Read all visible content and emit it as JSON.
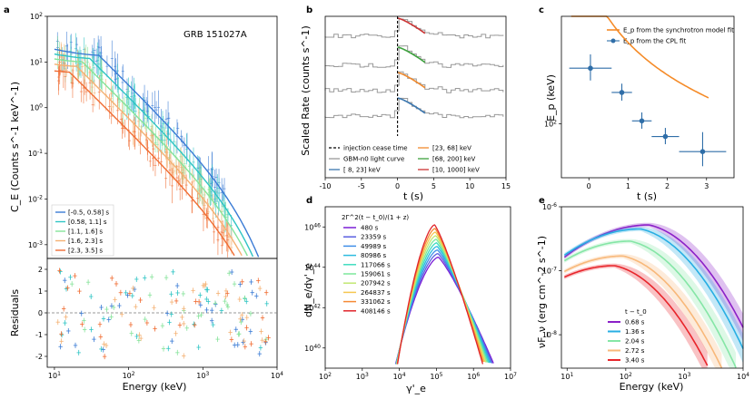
{
  "chart_data": [
    {
      "panel": "a",
      "type": "line",
      "title": "GRB 151027A",
      "xlabel": "Energy (keV)",
      "ylabel": "C_E (Counts s^-1 keV^-1)",
      "xscale": "log",
      "yscale": "log",
      "xlim": [
        8,
        10000
      ],
      "ylim": [
        0.0005,
        100
      ],
      "xticks": [
        "10^1",
        "10^2",
        "10^3",
        "10^4"
      ],
      "yticks": [
        "10^-3",
        "10^-2",
        "10^-1",
        "10^0",
        "10^1",
        "10^2"
      ],
      "legend_position": "bottom-left",
      "series": [
        {
          "name": "[-0.5, 0.58] s",
          "color": "#3a7bd5",
          "peak_keV": 40,
          "norm": 14
        },
        {
          "name": "[0.58, 1.1] s",
          "color": "#2ec4c4",
          "peak_keV": 30,
          "norm": 12
        },
        {
          "name": "[1.1, 1.6] s",
          "color": "#86e39a",
          "peak_keV": 24,
          "norm": 10
        },
        {
          "name": "[1.6, 2.3] s",
          "color": "#f4b173",
          "peak_keV": 20,
          "norm": 8
        },
        {
          "name": "[2.3, 3.5] s",
          "color": "#f06c32",
          "peak_keV": 16,
          "norm": 6
        }
      ],
      "residuals": {
        "ylabel": "Residuals",
        "ylim": [
          -2.5,
          2.5
        ],
        "yticks": [
          -2,
          -1,
          0,
          1,
          2
        ]
      }
    },
    {
      "panel": "b",
      "type": "line",
      "xlabel": "t (s)",
      "ylabel": "Scaled Rate (counts s^-1)",
      "xlim": [
        -10,
        15
      ],
      "xticks": [
        -10,
        -5,
        0,
        5,
        10,
        15
      ],
      "injection_cease_time": 0,
      "series": [
        {
          "name": "injection cease time",
          "color": "#000000",
          "style": "dashed"
        },
        {
          "name": "GBM-n0 light curve",
          "color": "#999999"
        },
        {
          "name": "[ 8, 23] keV",
          "color": "#3a76af"
        },
        {
          "name": "[23, 68] keV",
          "color": "#f08a2e"
        },
        {
          "name": "[68, 200] keV",
          "color": "#3da23d"
        },
        {
          "name": "[10, 1000] keV",
          "color": "#cc3333"
        }
      ]
    },
    {
      "panel": "c",
      "type": "scatter",
      "xlabel": "t (s)",
      "ylabel": "E_p (keV)",
      "yscale": "log",
      "xlim": [
        -0.7,
        3.7
      ],
      "ylim": [
        50,
        400
      ],
      "xticks": [
        0,
        1,
        2,
        3
      ],
      "yticks": [
        "10^2"
      ],
      "legend_position": "top-right",
      "series": [
        {
          "name": "E_p from the synchrotron model fit",
          "color": "#f58b28",
          "type": "line"
        },
        {
          "name": "E_p from the CPL fit",
          "color": "#2f6ea8",
          "type": "errorbar",
          "points": [
            {
              "t": 0.04,
              "ep": 205,
              "xerr": 0.54,
              "yerr": [
                30,
                40
              ]
            },
            {
              "t": 0.84,
              "ep": 150,
              "xerr": 0.26,
              "yerr": [
                15,
                18
              ]
            },
            {
              "t": 1.35,
              "ep": 104,
              "xerr": 0.25,
              "yerr": [
                10,
                12
              ]
            },
            {
              "t": 1.95,
              "ep": 85,
              "xerr": 0.35,
              "yerr": [
                8,
                10
              ]
            },
            {
              "t": 2.9,
              "ep": 70,
              "xerr": 0.6,
              "yerr": [
                12,
                20
              ]
            }
          ]
        }
      ]
    },
    {
      "panel": "d",
      "type": "line",
      "xlabel": "γ'_e",
      "ylabel": "dN_e/dγ'_e",
      "xscale": "log",
      "yscale": "log",
      "xlim": [
        100,
        10000000
      ],
      "ylim": [
        1e+39,
        1e+47
      ],
      "xticks": [
        "10^2",
        "10^3",
        "10^4",
        "10^5",
        "10^6",
        "10^7"
      ],
      "yticks": [
        "10^40",
        "10^42",
        "10^44",
        "10^46"
      ],
      "legend_title": "2Γ^2(t − t_0)/(1 + z)",
      "series": [
        {
          "name": "480 s",
          "color": "#7b1fd6"
        },
        {
          "name": "23359 s",
          "color": "#5a5fe0"
        },
        {
          "name": "49989 s",
          "color": "#3f8ee8"
        },
        {
          "name": "80986 s",
          "color": "#2cbbe0"
        },
        {
          "name": "117066 s",
          "color": "#3fdcc0"
        },
        {
          "name": "159061 s",
          "color": "#7ce89a"
        },
        {
          "name": "207942 s",
          "color": "#c2e872"
        },
        {
          "name": "264837 s",
          "color": "#f5c750"
        },
        {
          "name": "331062 s",
          "color": "#f58a35"
        },
        {
          "name": "408146 s",
          "color": "#e0242b"
        }
      ]
    },
    {
      "panel": "e",
      "type": "line",
      "xlabel": "Energy (keV)",
      "ylabel": "νF_ν (erg cm^-2 s^-1)",
      "xscale": "log",
      "yscale": "log",
      "xlim": [
        8,
        10000
      ],
      "ylim": [
        3e-09,
        1e-06
      ],
      "xticks": [
        "10^1",
        "10^2",
        "10^3",
        "10^4"
      ],
      "yticks": [
        "10^-8",
        "10^-7",
        "10^-6"
      ],
      "legend_title": "t − t_0",
      "legend_position": "bottom-left",
      "series": [
        {
          "name": "0.68 s",
          "color": "#8b20c8",
          "peak_keV": 250,
          "peak": 5.2e-07
        },
        {
          "name": "1.36 s",
          "color": "#27aee3",
          "peak_keV": 180,
          "peak": 4.5e-07
        },
        {
          "name": "2.04 s",
          "color": "#85e6a6",
          "peak_keV": 120,
          "peak": 2.9e-07
        },
        {
          "name": "2.72 s",
          "color": "#f8b87a",
          "peak_keV": 90,
          "peak": 1.7e-07
        },
        {
          "name": "3.40 s",
          "color": "#e8252b",
          "peak_keV": 65,
          "peak": 1.2e-07
        }
      ]
    }
  ],
  "panel_labels": [
    "a",
    "b",
    "c",
    "d",
    "e"
  ]
}
